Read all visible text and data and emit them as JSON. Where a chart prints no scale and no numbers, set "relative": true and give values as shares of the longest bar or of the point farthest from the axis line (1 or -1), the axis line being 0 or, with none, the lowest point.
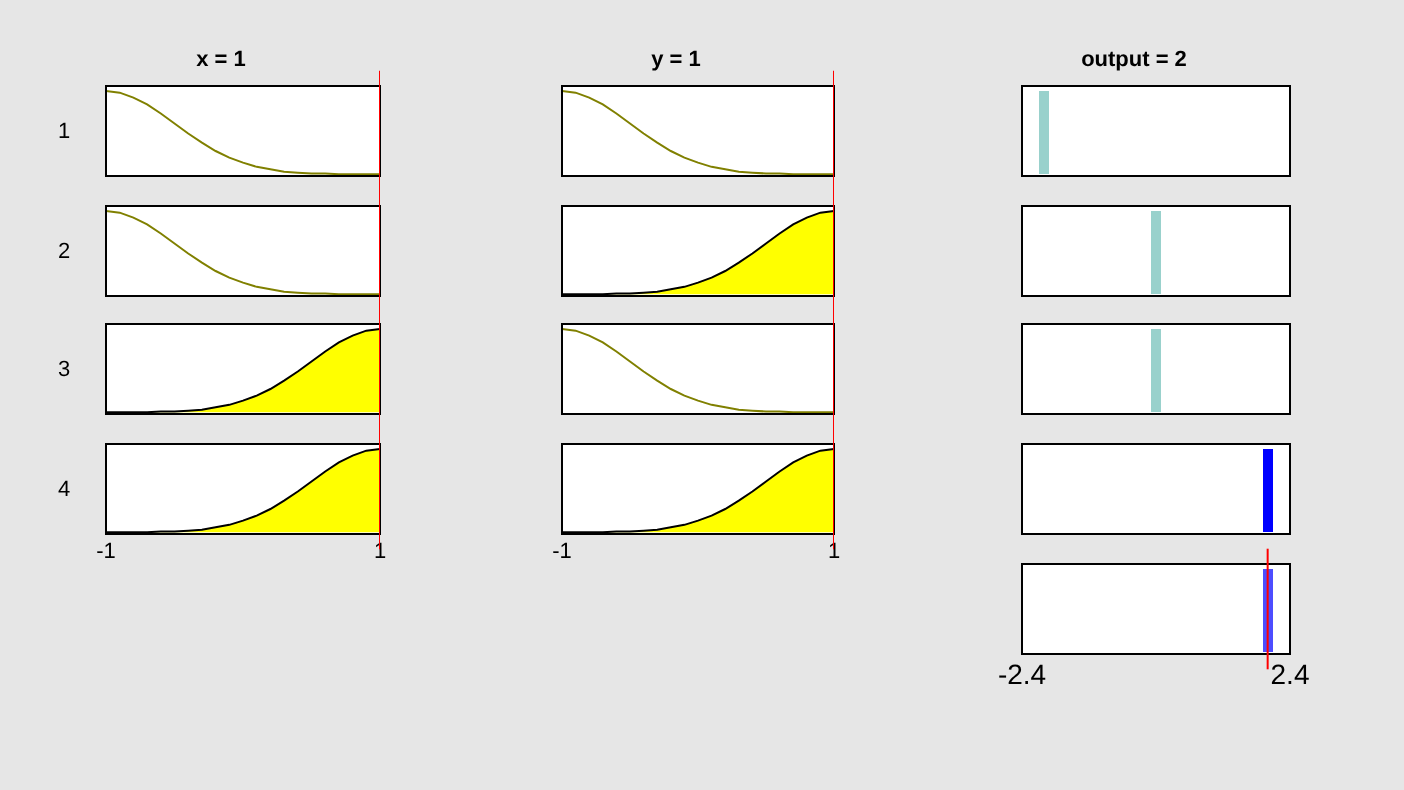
{
  "chart_data": [
    {
      "type": "line",
      "title": "x = 1",
      "annotations": [
        "1"
      ],
      "relative": true,
      "xlim": [
        -1,
        1
      ],
      "tick_labels": false,
      "x": [
        -1,
        -0.9,
        -0.8,
        -0.7,
        -0.6,
        -0.5,
        -0.4,
        -0.3,
        -0.2,
        -0.1,
        0,
        0.1,
        0.2,
        0.3,
        0.4,
        0.5,
        0.6,
        0.7,
        0.8,
        0.9,
        1
      ],
      "series": [
        {
          "color": "#808000",
          "values": [
            1,
            0.98,
            0.92,
            0.84,
            0.73,
            0.61,
            0.49,
            0.38,
            0.28,
            0.2,
            0.14,
            0.09,
            0.06,
            0.03,
            0.02,
            0.01,
            0.01,
            0,
            0,
            0,
            0
          ]
        }
      ],
      "ref_lines": [
        {
          "axis": "x",
          "value": 1,
          "color": "#ff0000"
        }
      ]
    },
    {
      "type": "line",
      "annotations": [
        "2"
      ],
      "relative": true,
      "xlim": [
        -1,
        1
      ],
      "tick_labels": false,
      "x": [
        -1,
        -0.9,
        -0.8,
        -0.7,
        -0.6,
        -0.5,
        -0.4,
        -0.3,
        -0.2,
        -0.1,
        0,
        0.1,
        0.2,
        0.3,
        0.4,
        0.5,
        0.6,
        0.7,
        0.8,
        0.9,
        1
      ],
      "series": [
        {
          "color": "#808000",
          "values": [
            1,
            0.98,
            0.92,
            0.84,
            0.73,
            0.61,
            0.49,
            0.38,
            0.28,
            0.2,
            0.14,
            0.09,
            0.06,
            0.03,
            0.02,
            0.01,
            0.01,
            0,
            0,
            0,
            0
          ]
        }
      ],
      "ref_lines": [
        {
          "axis": "x",
          "value": 1,
          "color": "#ff0000"
        }
      ]
    },
    {
      "type": "area",
      "annotations": [
        "3"
      ],
      "relative": true,
      "xlim": [
        -1,
        1
      ],
      "tick_labels": false,
      "x": [
        -1,
        -0.9,
        -0.8,
        -0.7,
        -0.6,
        -0.5,
        -0.4,
        -0.3,
        -0.2,
        -0.1,
        0,
        0.1,
        0.2,
        0.3,
        0.4,
        0.5,
        0.6,
        0.7,
        0.8,
        0.9,
        1
      ],
      "series": [
        {
          "color": "#ffff00",
          "values": [
            0,
            0,
            0,
            0,
            0.01,
            0.01,
            0.02,
            0.03,
            0.06,
            0.09,
            0.14,
            0.2,
            0.28,
            0.38,
            0.49,
            0.61,
            0.73,
            0.84,
            0.92,
            0.98,
            1
          ]
        }
      ],
      "ref_lines": [
        {
          "axis": "x",
          "value": 1,
          "color": "#ff0000"
        }
      ]
    },
    {
      "type": "area",
      "annotations": [
        "4"
      ],
      "relative": true,
      "xlim": [
        -1,
        1
      ],
      "xticks": [
        -1,
        1
      ],
      "x": [
        -1,
        -0.9,
        -0.8,
        -0.7,
        -0.6,
        -0.5,
        -0.4,
        -0.3,
        -0.2,
        -0.1,
        0,
        0.1,
        0.2,
        0.3,
        0.4,
        0.5,
        0.6,
        0.7,
        0.8,
        0.9,
        1
      ],
      "series": [
        {
          "color": "#ffff00",
          "values": [
            0,
            0,
            0,
            0,
            0.01,
            0.01,
            0.02,
            0.03,
            0.06,
            0.09,
            0.14,
            0.2,
            0.28,
            0.38,
            0.49,
            0.61,
            0.73,
            0.84,
            0.92,
            0.98,
            1
          ]
        }
      ],
      "ref_lines": [
        {
          "axis": "x",
          "value": 1,
          "color": "#ff0000"
        }
      ]
    },
    {
      "type": "line",
      "title": "y = 1",
      "relative": true,
      "xlim": [
        -1,
        1
      ],
      "tick_labels": false,
      "x": [
        -1,
        -0.9,
        -0.8,
        -0.7,
        -0.6,
        -0.5,
        -0.4,
        -0.3,
        -0.2,
        -0.1,
        0,
        0.1,
        0.2,
        0.3,
        0.4,
        0.5,
        0.6,
        0.7,
        0.8,
        0.9,
        1
      ],
      "series": [
        {
          "color": "#808000",
          "values": [
            1,
            0.98,
            0.92,
            0.84,
            0.73,
            0.61,
            0.49,
            0.38,
            0.28,
            0.2,
            0.14,
            0.09,
            0.06,
            0.03,
            0.02,
            0.01,
            0.01,
            0,
            0,
            0,
            0
          ]
        }
      ],
      "ref_lines": [
        {
          "axis": "x",
          "value": 1,
          "color": "#ff0000"
        }
      ]
    },
    {
      "type": "area",
      "relative": true,
      "xlim": [
        -1,
        1
      ],
      "tick_labels": false,
      "x": [
        -1,
        -0.9,
        -0.8,
        -0.7,
        -0.6,
        -0.5,
        -0.4,
        -0.3,
        -0.2,
        -0.1,
        0,
        0.1,
        0.2,
        0.3,
        0.4,
        0.5,
        0.6,
        0.7,
        0.8,
        0.9,
        1
      ],
      "series": [
        {
          "color": "#ffff00",
          "values": [
            0,
            0,
            0,
            0,
            0.01,
            0.01,
            0.02,
            0.03,
            0.06,
            0.09,
            0.14,
            0.2,
            0.28,
            0.38,
            0.49,
            0.61,
            0.73,
            0.84,
            0.92,
            0.98,
            1
          ]
        }
      ],
      "ref_lines": [
        {
          "axis": "x",
          "value": 1,
          "color": "#ff0000"
        }
      ]
    },
    {
      "type": "line",
      "relative": true,
      "xlim": [
        -1,
        1
      ],
      "tick_labels": false,
      "x": [
        -1,
        -0.9,
        -0.8,
        -0.7,
        -0.6,
        -0.5,
        -0.4,
        -0.3,
        -0.2,
        -0.1,
        0,
        0.1,
        0.2,
        0.3,
        0.4,
        0.5,
        0.6,
        0.7,
        0.8,
        0.9,
        1
      ],
      "series": [
        {
          "color": "#808000",
          "values": [
            1,
            0.98,
            0.92,
            0.84,
            0.73,
            0.61,
            0.49,
            0.38,
            0.28,
            0.2,
            0.14,
            0.09,
            0.06,
            0.03,
            0.02,
            0.01,
            0.01,
            0,
            0,
            0,
            0
          ]
        }
      ],
      "ref_lines": [
        {
          "axis": "x",
          "value": 1,
          "color": "#ff0000"
        }
      ]
    },
    {
      "type": "area",
      "relative": true,
      "xlim": [
        -1,
        1
      ],
      "xticks": [
        -1,
        1
      ],
      "x": [
        -1,
        -0.9,
        -0.8,
        -0.7,
        -0.6,
        -0.5,
        -0.4,
        -0.3,
        -0.2,
        -0.1,
        0,
        0.1,
        0.2,
        0.3,
        0.4,
        0.5,
        0.6,
        0.7,
        0.8,
        0.9,
        1
      ],
      "series": [
        {
          "color": "#ffff00",
          "values": [
            0,
            0,
            0,
            0,
            0.01,
            0.01,
            0.02,
            0.03,
            0.06,
            0.09,
            0.14,
            0.2,
            0.28,
            0.38,
            0.49,
            0.61,
            0.73,
            0.84,
            0.92,
            0.98,
            1
          ]
        }
      ],
      "ref_lines": [
        {
          "axis": "x",
          "value": 1,
          "color": "#ff0000"
        }
      ]
    },
    {
      "type": "bar",
      "title": "output = 2",
      "relative": true,
      "xlim": [
        -2.4,
        2.4
      ],
      "tick_labels": false,
      "x": [
        -2
      ],
      "series": [
        {
          "color": "#99d1cc",
          "values": [
            1
          ]
        }
      ]
    },
    {
      "type": "bar",
      "relative": true,
      "xlim": [
        -2.4,
        2.4
      ],
      "tick_labels": false,
      "x": [
        0
      ],
      "series": [
        {
          "color": "#99d1cc",
          "values": [
            1
          ]
        }
      ]
    },
    {
      "type": "bar",
      "relative": true,
      "xlim": [
        -2.4,
        2.4
      ],
      "tick_labels": false,
      "x": [
        0
      ],
      "series": [
        {
          "color": "#99d1cc",
          "values": [
            1
          ]
        }
      ]
    },
    {
      "type": "bar",
      "relative": true,
      "xlim": [
        -2.4,
        2.4
      ],
      "tick_labels": false,
      "x": [
        2
      ],
      "series": [
        {
          "color": "#0000ff",
          "values": [
            1
          ]
        }
      ]
    },
    {
      "type": "bar",
      "relative": true,
      "xlim": [
        -2.4,
        2.4
      ],
      "xticks": [
        -2.4,
        2.4
      ],
      "x": [
        2
      ],
      "series": [
        {
          "color": "#4d4dff",
          "values": [
            1
          ]
        }
      ],
      "ref_lines": [
        {
          "axis": "x",
          "value": 2,
          "color": "#ff0000"
        }
      ]
    }
  ]
}
